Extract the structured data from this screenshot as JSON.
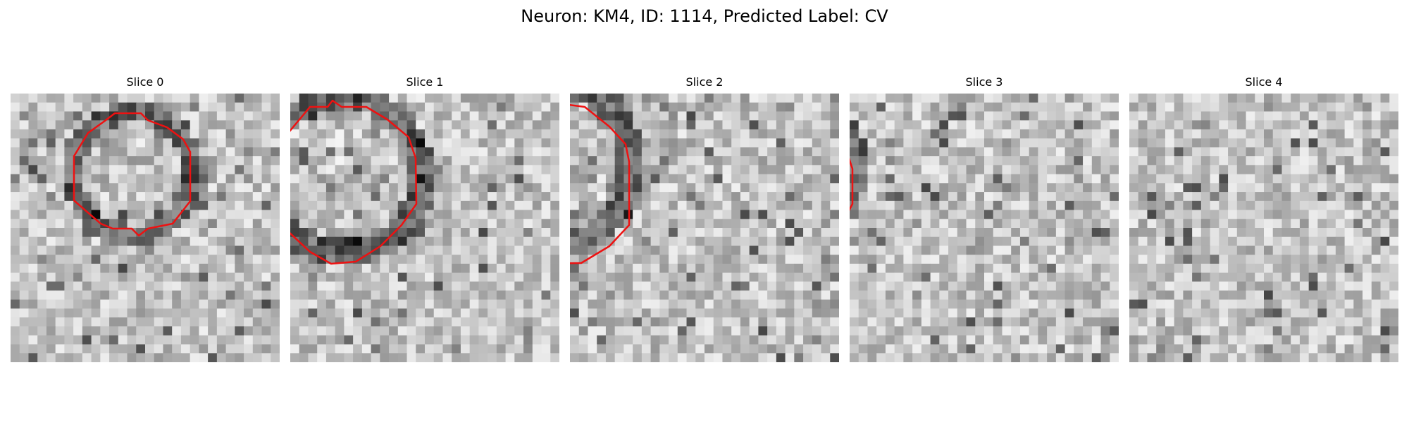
{
  "figure": {
    "title": "Neuron: KM4, ID: 1114, Predicted Label: CV",
    "contour_color": "#ee1111",
    "colormap": "grayscale",
    "grid_size": 30,
    "panels": [
      {
        "title": "Slice 0",
        "contour_points": [
          [
            163,
            161
          ],
          [
            200,
            161
          ],
          [
            210,
            171
          ],
          [
            237,
            181
          ],
          [
            260,
            198
          ],
          [
            270,
            216
          ],
          [
            270,
            286
          ],
          [
            245,
            318
          ],
          [
            210,
            325
          ],
          [
            197,
            335
          ],
          [
            187,
            325
          ],
          [
            160,
            325
          ],
          [
            143,
            318
          ],
          [
            105,
            285
          ],
          [
            105,
            222
          ],
          [
            125,
            189
          ],
          [
            150,
            171
          ]
        ]
      },
      {
        "title": "Slice 1",
        "contour_points": [
          [
            472,
            143
          ],
          [
            485,
            152
          ],
          [
            520,
            152
          ],
          [
            550,
            170
          ],
          [
            580,
            195
          ],
          [
            590,
            225
          ],
          [
            591,
            290
          ],
          [
            570,
            320
          ],
          [
            540,
            350
          ],
          [
            505,
            372
          ],
          [
            470,
            375
          ],
          [
            440,
            358
          ],
          [
            410,
            330
          ],
          [
            380,
            300
          ],
          [
            378,
            235
          ],
          [
            400,
            200
          ],
          [
            440,
            152
          ],
          [
            465,
            152
          ]
        ]
      },
      {
        "title": "Slice 2",
        "contour_points": [
          [
            760,
            133
          ],
          [
            780,
            133
          ],
          [
            800,
            148
          ],
          [
            830,
            152
          ],
          [
            865,
            180
          ],
          [
            888,
            205
          ],
          [
            893,
            230
          ],
          [
            893,
            320
          ],
          [
            865,
            350
          ],
          [
            825,
            374
          ],
          [
            760,
            375
          ],
          [
            720,
            350
          ],
          [
            690,
            310
          ],
          [
            673,
            280
          ],
          [
            672,
            215
          ],
          [
            690,
            190
          ],
          [
            725,
            160
          ],
          [
            752,
            150
          ]
        ]
      },
      {
        "title": "Slice 3",
        "contour_points": [
          [
            1118,
            133
          ],
          [
            1135,
            133
          ],
          [
            1160,
            143
          ],
          [
            1195,
            180
          ],
          [
            1200,
            210
          ],
          [
            1210,
            240
          ],
          [
            1210,
            290
          ],
          [
            1195,
            318
          ],
          [
            1165,
            350
          ],
          [
            1100,
            365
          ],
          [
            1050,
            355
          ],
          [
            1030,
            340
          ],
          [
            1008,
            300
          ],
          [
            1000,
            265
          ],
          [
            993,
            258
          ],
          [
            1002,
            240
          ],
          [
            1005,
            205
          ],
          [
            1050,
            153
          ],
          [
            1070,
            143
          ],
          [
            1110,
            143
          ]
        ]
      },
      {
        "title": "Slice 4",
        "contour_points": [
          [
            1385,
            153
          ],
          [
            1435,
            153
          ],
          [
            1458,
            170
          ],
          [
            1478,
            200
          ],
          [
            1495,
            240
          ],
          [
            1497,
            285
          ],
          [
            1478,
            300
          ],
          [
            1455,
            325
          ],
          [
            1425,
            335
          ],
          [
            1385,
            335
          ],
          [
            1355,
            318
          ],
          [
            1332,
            300
          ],
          [
            1333,
            210
          ],
          [
            1350,
            185
          ],
          [
            1362,
            165
          ]
        ],
        "extra_contours": [
          [
            [
              1363,
              214
            ],
            [
              1372,
              209
            ],
            [
              1381,
              214
            ],
            [
              1372,
              219
            ]
          ],
          [
            [
              1363,
              253
            ],
            [
              1373,
              250
            ],
            [
              1381,
              258
            ],
            [
              1388,
              250
            ],
            [
              1378,
              266
            ],
            [
              1378,
              287
            ],
            [
              1396,
              293
            ],
            [
              1393,
              299
            ],
            [
              1370,
              293
            ],
            [
              1362,
              268
            ]
          ]
        ],
        "dot": [
          1415,
          293
        ]
      }
    ]
  }
}
